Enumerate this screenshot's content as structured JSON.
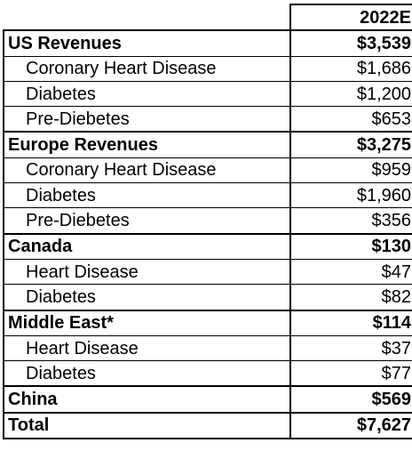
{
  "header": {
    "column": "2022E"
  },
  "groups": [
    {
      "label": "US Revenues",
      "value": "$3,539",
      "items": [
        {
          "label": "Coronary Heart Disease",
          "value": "$1,686"
        },
        {
          "label": "Diabetes",
          "value": "$1,200"
        },
        {
          "label": "Pre-Diebetes",
          "value": "$653"
        }
      ]
    },
    {
      "label": "Europe Revenues",
      "value": "$3,275",
      "items": [
        {
          "label": "Coronary Heart Disease",
          "value": "$959"
        },
        {
          "label": "Diabetes",
          "value": "$1,960"
        },
        {
          "label": "Pre-Diebetes",
          "value": "$356"
        }
      ]
    },
    {
      "label": "Canada",
      "value": "$130",
      "items": [
        {
          "label": "Heart Disease",
          "value": "$47"
        },
        {
          "label": "Diabetes",
          "value": "$82"
        }
      ]
    },
    {
      "label": "Middle East*",
      "value": "$114",
      "items": [
        {
          "label": "Heart Disease",
          "value": "$37"
        },
        {
          "label": "Diabetes",
          "value": "$77"
        }
      ]
    },
    {
      "label": "China",
      "value": "$569",
      "items": []
    }
  ],
  "total": {
    "label": "Total",
    "value": "$7,627"
  }
}
